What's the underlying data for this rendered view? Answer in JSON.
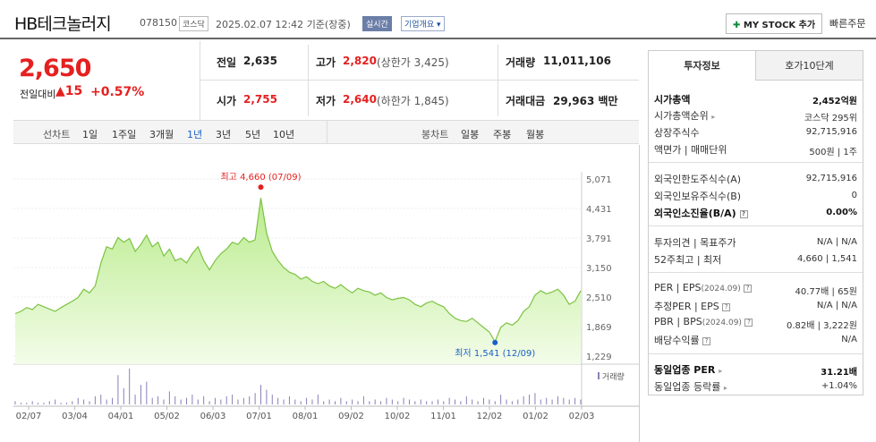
{
  "header": {
    "company": "HB테크놀러지",
    "code": "078150",
    "market": "코스닥",
    "datetime": "2025.02.07 12:42",
    "basis": "기준(장중)",
    "realtime": "실시간",
    "overview": "기업개요",
    "mystock": "MY STOCK 추가",
    "quick_order": "빠른주문"
  },
  "quote": {
    "price": "2,650",
    "change_label": "전일대비",
    "change_value": "15",
    "change_pct": "+0.57%",
    "prev_label": "전일",
    "prev": "2,635",
    "high_label": "고가",
    "high": "2,820",
    "upper_limit": "(상한가 3,425)",
    "volume_label": "거래량",
    "volume": "11,011,106",
    "open_label": "시가",
    "open": "2,755",
    "low_label": "저가",
    "low": "2,640",
    "lower_limit": "(하한가 1,845)",
    "amount_label": "거래대금",
    "amount": "29,963 백만"
  },
  "period_bar": {
    "line_label": "선차트",
    "periods": [
      "1일",
      "1주일",
      "3개월",
      "1년",
      "3년",
      "5년",
      "10년"
    ],
    "selected": "1년",
    "candle_label": "봉차트",
    "candles": [
      "일봉",
      "주봉",
      "월봉"
    ]
  },
  "chart_data": {
    "type": "area",
    "y_ticks": [
      "5,071",
      "4,431",
      "3,791",
      "3,150",
      "2,510",
      "1,869",
      "1,229"
    ],
    "ylim": [
      1229,
      5071
    ],
    "x_ticks": [
      "02/07",
      "03/04",
      "04/01",
      "05/02",
      "06/03",
      "07/01",
      "08/01",
      "09/02",
      "10/02",
      "11/01",
      "12/02",
      "01/02",
      "02/03"
    ],
    "values": [
      2150,
      2200,
      2280,
      2240,
      2350,
      2300,
      2250,
      2200,
      2280,
      2350,
      2420,
      2500,
      2680,
      2600,
      2750,
      3250,
      3600,
      3550,
      3800,
      3700,
      3780,
      3500,
      3650,
      3850,
      3600,
      3700,
      3400,
      3550,
      3300,
      3350,
      3250,
      3450,
      3600,
      3300,
      3100,
      3300,
      3450,
      3550,
      3700,
      3650,
      3800,
      3700,
      3750,
      4660,
      3900,
      3500,
      3300,
      3150,
      3050,
      3000,
      2900,
      2950,
      2850,
      2800,
      2850,
      2750,
      2700,
      2780,
      2680,
      2600,
      2700,
      2650,
      2620,
      2550,
      2600,
      2500,
      2450,
      2480,
      2500,
      2450,
      2350,
      2300,
      2380,
      2420,
      2350,
      2300,
      2150,
      2050,
      2000,
      1980,
      2050,
      1950,
      1850,
      1750,
      1541,
      1850,
      1950,
      1900,
      2000,
      2200,
      2300,
      2550,
      2650,
      2580,
      2620,
      2680,
      2550,
      2350,
      2420,
      2650
    ],
    "max_label": "최고 4,660 (07/09)",
    "min_label": "최저 1,541 (12/09)",
    "volume_label": "거래량",
    "volumes": [
      2,
      1,
      1,
      2,
      1,
      1,
      2,
      3,
      1,
      1,
      2,
      4,
      3,
      2,
      5,
      6,
      3,
      4,
      18,
      10,
      22,
      6,
      12,
      14,
      4,
      5,
      3,
      8,
      5,
      3,
      4,
      6,
      3,
      5,
      2,
      4,
      3,
      5,
      6,
      3,
      4,
      5,
      7,
      12,
      9,
      6,
      4,
      3,
      5,
      3,
      2,
      4,
      3,
      6,
      2,
      3,
      2,
      4,
      2,
      3,
      2,
      5,
      2,
      3,
      2,
      4,
      3,
      2,
      4,
      3,
      2,
      3,
      2,
      2,
      3,
      2,
      4,
      3,
      2,
      5,
      3,
      2,
      4,
      3,
      2,
      6,
      3,
      2,
      3,
      5,
      6,
      7,
      3,
      4,
      3,
      5,
      4,
      3,
      4,
      3
    ]
  },
  "info_panel": {
    "tabs": [
      "투자정보",
      "호가10단계"
    ],
    "rows1": [
      {
        "label": "시가총액",
        "value": "2,452억원"
      },
      {
        "label": "시가총액순위",
        "value": "코스닥 295위"
      },
      {
        "label": "상장주식수",
        "value": "92,715,916"
      },
      {
        "label": "액면가 | 매매단위",
        "value": "500원 | 1주"
      }
    ],
    "rows2": [
      {
        "label": "외국인한도주식수(A)",
        "value": "92,715,916"
      },
      {
        "label": "외국인보유주식수(B)",
        "value": "0"
      },
      {
        "label": "외국인소진율(B/A)",
        "value": "0.00%"
      }
    ],
    "rows3": [
      {
        "label": "투자의견 | 목표주가",
        "value": "N/A | N/A"
      },
      {
        "label": "52주최고 | 최저",
        "value": "4,660 | 1,541"
      }
    ],
    "rows4": [
      {
        "label": "PER | EPS",
        "sub": "(2024.09)",
        "value": "40.77배 | 65원"
      },
      {
        "label": "추정PER | EPS",
        "value": "N/A | N/A"
      },
      {
        "label": "PBR | BPS",
        "sub": "(2024.09)",
        "value": "0.82배 | 3,222원"
      },
      {
        "label": "배당수익률",
        "value": "N/A"
      }
    ],
    "rows5": [
      {
        "label": "동일업종 PER",
        "value": "31.21배"
      },
      {
        "label": "동일업종 등락률",
        "value": "+1.04%"
      }
    ]
  }
}
